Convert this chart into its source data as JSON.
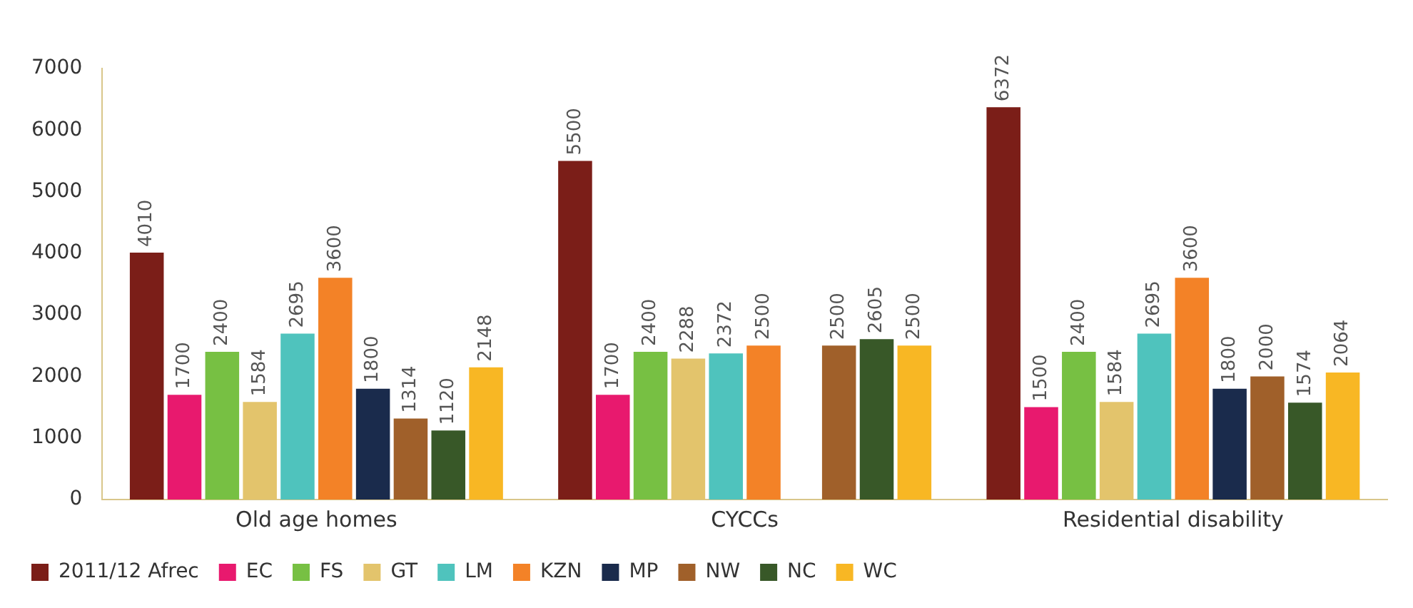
{
  "chart_data": {
    "type": "bar",
    "categories": [
      "Old age homes",
      "CYCCs",
      "Residential disability"
    ],
    "series": [
      {
        "name": "2011/12 Afrec",
        "color": "#7b1e18",
        "values": [
          4010,
          5500,
          6372
        ]
      },
      {
        "name": "EC",
        "color": "#e8196e",
        "values": [
          1700,
          1700,
          1500
        ]
      },
      {
        "name": "FS",
        "color": "#77c043",
        "values": [
          2400,
          2400,
          2400
        ]
      },
      {
        "name": "GT",
        "color": "#e3c46c",
        "values": [
          1584,
          2288,
          1584
        ]
      },
      {
        "name": "LM",
        "color": "#4fc3bd",
        "values": [
          2695,
          2372,
          2695
        ]
      },
      {
        "name": "KZN",
        "color": "#f38227",
        "values": [
          3600,
          2500,
          3600
        ]
      },
      {
        "name": "MP",
        "color": "#1a2b4c",
        "values": [
          1800,
          null,
          1800
        ]
      },
      {
        "name": "NW",
        "color": "#a0602a",
        "values": [
          1314,
          2500,
          2000
        ]
      },
      {
        "name": "NC",
        "color": "#385828",
        "values": [
          1120,
          2605,
          1574
        ]
      },
      {
        "name": "WC",
        "color": "#f8b724",
        "values": [
          2148,
          2500,
          2064
        ]
      }
    ],
    "ylim": [
      0,
      7000
    ],
    "yticks": [
      0,
      1000,
      2000,
      3000,
      4000,
      5000,
      6000,
      7000
    ],
    "grid": false,
    "legend": "bottom",
    "data_labels": true
  }
}
